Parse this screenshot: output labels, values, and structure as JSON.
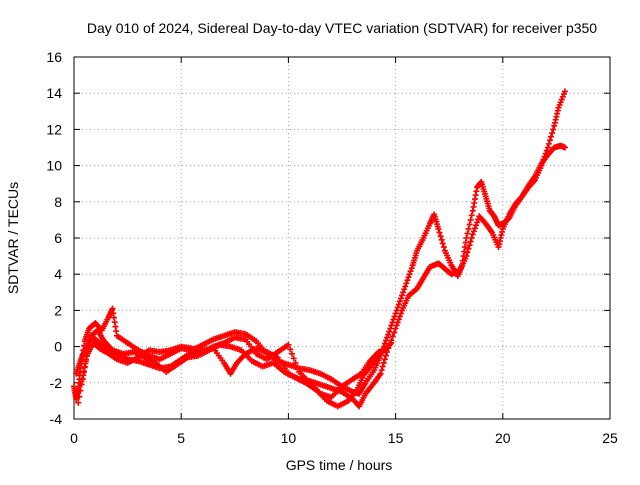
{
  "chart_data": {
    "type": "scatter",
    "title": "Day 010 of 2024, Sidereal Day-to-day VTEC variation (SDTVAR) for receiver p350",
    "xlabel": "GPS time / hours",
    "ylabel": "SDTVAR / TECUs",
    "xlim": [
      0,
      25
    ],
    "ylim": [
      -4,
      16
    ],
    "xticks": [
      "0",
      "5",
      "10",
      "15",
      "20",
      "25"
    ],
    "yticks": [
      "-4",
      "-2",
      "0",
      "2",
      "4",
      "6",
      "8",
      "10",
      "12",
      "14",
      "16"
    ],
    "grid": true,
    "marker": "+",
    "series_color": "#ff0000",
    "series": [
      {
        "points": [
          [
            0.0,
            -2.2
          ],
          [
            0.1,
            -2.9
          ],
          [
            0.2,
            -2.4
          ],
          [
            0.3,
            -1.2
          ],
          [
            0.5,
            0.3
          ],
          [
            0.7,
            1.0
          ],
          [
            1.0,
            1.3
          ],
          [
            1.3,
            0.9
          ],
          [
            1.6,
            1.6
          ],
          [
            1.8,
            2.1
          ],
          [
            2.0,
            0.6
          ],
          [
            2.5,
            0.2
          ],
          [
            3.0,
            -0.2
          ],
          [
            3.5,
            -0.5
          ],
          [
            4.0,
            -0.7
          ],
          [
            4.5,
            -0.4
          ],
          [
            5.0,
            -0.1
          ],
          [
            5.5,
            -0.2
          ],
          [
            6.0,
            0.1
          ],
          [
            6.5,
            0.4
          ],
          [
            7.0,
            0.6
          ],
          [
            7.5,
            0.8
          ],
          [
            8.0,
            0.7
          ],
          [
            8.5,
            0.3
          ],
          [
            9.0,
            -0.4
          ],
          [
            9.5,
            -0.8
          ],
          [
            10.0,
            -1.0
          ],
          [
            10.5,
            -1.2
          ],
          [
            11.0,
            -1.3
          ],
          [
            11.5,
            -1.5
          ],
          [
            12.0,
            -1.8
          ],
          [
            12.5,
            -2.2
          ],
          [
            13.0,
            -2.5
          ],
          [
            13.3,
            -2.6
          ],
          [
            13.6,
            -2.0
          ],
          [
            14.0,
            -1.3
          ],
          [
            14.3,
            -0.5
          ],
          [
            14.6,
            0.5
          ],
          [
            14.9,
            1.5
          ],
          [
            15.2,
            2.5
          ],
          [
            15.5,
            3.5
          ],
          [
            15.8,
            4.5
          ],
          [
            16.0,
            5.3
          ],
          [
            16.3,
            6.0
          ],
          [
            16.6,
            6.8
          ],
          [
            16.8,
            7.3
          ],
          [
            17.0,
            6.5
          ],
          [
            17.3,
            5.3
          ],
          [
            17.6,
            4.5
          ],
          [
            17.9,
            3.9
          ],
          [
            18.1,
            4.5
          ],
          [
            18.3,
            6.0
          ],
          [
            18.6,
            7.5
          ],
          [
            18.8,
            8.8
          ],
          [
            19.0,
            9.1
          ],
          [
            19.2,
            8.3
          ],
          [
            19.4,
            7.5
          ],
          [
            19.6,
            7.2
          ],
          [
            19.8,
            6.7
          ],
          [
            20.0,
            6.8
          ],
          [
            20.3,
            7.1
          ],
          [
            20.6,
            7.8
          ],
          [
            20.9,
            8.3
          ],
          [
            21.2,
            8.8
          ],
          [
            21.5,
            9.2
          ],
          [
            21.8,
            10.0
          ],
          [
            22.1,
            11.0
          ],
          [
            22.4,
            12.2
          ],
          [
            22.6,
            13.2
          ],
          [
            22.9,
            14.1
          ]
        ]
      },
      {
        "points": [
          [
            0.1,
            -1.5
          ],
          [
            0.3,
            -0.8
          ],
          [
            0.5,
            -0.2
          ],
          [
            0.8,
            0.5
          ],
          [
            1.0,
            0.4
          ],
          [
            1.3,
            0.1
          ],
          [
            1.6,
            -0.2
          ],
          [
            2.0,
            -0.4
          ],
          [
            2.5,
            -0.7
          ],
          [
            3.0,
            -0.8
          ],
          [
            3.5,
            -1.0
          ],
          [
            4.0,
            -1.2
          ],
          [
            4.5,
            -1.1
          ],
          [
            5.0,
            -0.7
          ],
          [
            5.5,
            -0.3
          ],
          [
            6.0,
            -0.2
          ],
          [
            6.5,
            -0.1
          ],
          [
            7.0,
            -0.9
          ],
          [
            7.3,
            -1.5
          ],
          [
            7.6,
            -0.9
          ],
          [
            8.0,
            -0.4
          ],
          [
            8.5,
            -0.1
          ],
          [
            9.0,
            -0.3
          ],
          [
            9.5,
            -0.6
          ],
          [
            10.0,
            -1.5
          ],
          [
            10.5,
            -1.8
          ],
          [
            11.0,
            -1.9
          ],
          [
            11.5,
            -2.1
          ],
          [
            12.0,
            -2.3
          ],
          [
            12.5,
            -2.5
          ],
          [
            13.0,
            -2.9
          ],
          [
            13.3,
            -3.3
          ],
          [
            13.6,
            -2.6
          ],
          [
            14.0,
            -2.0
          ],
          [
            14.3,
            -1.5
          ],
          [
            14.6,
            -0.3
          ],
          [
            15.0,
            1.0
          ],
          [
            15.3,
            2.0
          ],
          [
            15.6,
            2.8
          ],
          [
            16.0,
            3.2
          ],
          [
            16.3,
            3.8
          ],
          [
            16.6,
            4.4
          ],
          [
            17.0,
            4.6
          ],
          [
            17.3,
            4.3
          ],
          [
            17.6,
            4.0
          ],
          [
            18.0,
            4.2
          ],
          [
            18.3,
            5.0
          ],
          [
            18.6,
            6.2
          ],
          [
            18.9,
            7.2
          ],
          [
            19.2,
            6.8
          ],
          [
            19.5,
            6.3
          ],
          [
            19.8,
            5.5
          ],
          [
            20.0,
            6.5
          ],
          [
            20.3,
            7.3
          ],
          [
            20.6,
            7.9
          ],
          [
            20.9,
            8.3
          ],
          [
            21.2,
            8.9
          ],
          [
            21.5,
            9.4
          ],
          [
            21.8,
            10.1
          ],
          [
            22.1,
            10.6
          ],
          [
            22.4,
            11.0
          ],
          [
            22.7,
            11.1
          ],
          [
            22.9,
            11.0
          ]
        ]
      },
      {
        "points": [
          [
            0.1,
            -2.6
          ],
          [
            0.4,
            -1.8
          ],
          [
            0.6,
            -0.5
          ],
          [
            0.9,
            0.2
          ],
          [
            1.2,
            -0.1
          ],
          [
            1.5,
            -0.3
          ],
          [
            2.0,
            -0.7
          ],
          [
            2.5,
            -0.9
          ],
          [
            3.0,
            -0.6
          ],
          [
            3.5,
            -0.2
          ],
          [
            4.0,
            -0.3
          ],
          [
            4.5,
            -0.2
          ],
          [
            5.0,
            0.0
          ],
          [
            5.5,
            -0.1
          ],
          [
            6.0,
            -0.3
          ],
          [
            6.5,
            0.0
          ],
          [
            7.0,
            0.2
          ],
          [
            7.5,
            0.5
          ],
          [
            8.0,
            0.4
          ],
          [
            8.5,
            -0.4
          ],
          [
            9.0,
            -0.7
          ],
          [
            9.5,
            -0.3
          ],
          [
            10.0,
            0.1
          ],
          [
            10.5,
            -1.4
          ],
          [
            11.0,
            -2.0
          ],
          [
            11.5,
            -2.6
          ],
          [
            12.0,
            -2.8
          ],
          [
            12.5,
            -2.2
          ],
          [
            13.0,
            -1.8
          ],
          [
            13.4,
            -1.5
          ],
          [
            13.8,
            -0.8
          ],
          [
            14.2,
            -0.3
          ],
          [
            14.5,
            -0.2
          ],
          [
            14.8,
            0.2
          ]
        ]
      },
      {
        "points": [
          [
            0.2,
            -3.1
          ],
          [
            0.5,
            -1.1
          ],
          [
            0.8,
            0.6
          ],
          [
            1.1,
            0.9
          ],
          [
            1.4,
            0.3
          ],
          [
            1.8,
            -0.2
          ],
          [
            2.3,
            -0.4
          ],
          [
            2.8,
            -0.3
          ],
          [
            3.3,
            -0.6
          ],
          [
            3.8,
            -0.9
          ],
          [
            4.3,
            -1.4
          ],
          [
            4.8,
            -1.0
          ],
          [
            5.3,
            -0.6
          ],
          [
            5.8,
            -0.5
          ],
          [
            6.3,
            -0.2
          ],
          [
            6.8,
            0.1
          ],
          [
            7.3,
            0.0
          ],
          [
            7.8,
            -0.2
          ],
          [
            8.3,
            -0.8
          ],
          [
            8.8,
            -1.1
          ],
          [
            9.3,
            -0.9
          ],
          [
            9.8,
            -1.4
          ],
          [
            10.3,
            -1.7
          ],
          [
            10.8,
            -2.0
          ],
          [
            11.3,
            -2.4
          ],
          [
            11.8,
            -3.0
          ],
          [
            12.3,
            -3.3
          ],
          [
            12.8,
            -3.0
          ],
          [
            13.2,
            -2.4
          ],
          [
            13.5,
            -1.6
          ],
          [
            13.9,
            -1.0
          ],
          [
            14.3,
            -0.4
          ]
        ]
      }
    ]
  }
}
